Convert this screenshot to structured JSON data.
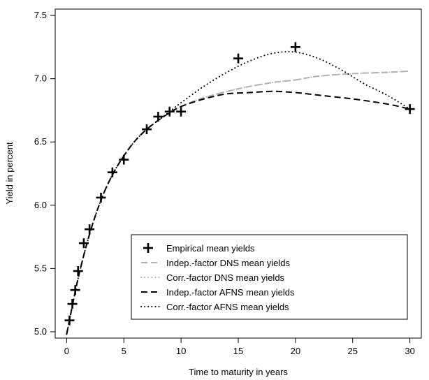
{
  "chart_data": {
    "type": "line",
    "title": "",
    "xlabel": "Time to maturity in years",
    "ylabel": "Yield in percent",
    "xlim": [
      -1,
      31
    ],
    "ylim": [
      4.95,
      7.55
    ],
    "xticks": [
      0,
      5,
      10,
      15,
      20,
      25,
      30
    ],
    "yticks": [
      5.0,
      5.5,
      6.0,
      6.5,
      7.0,
      7.5
    ],
    "xtick_labels": [
      "0",
      "5",
      "10",
      "15",
      "20",
      "25",
      "30"
    ],
    "ytick_labels": [
      "5.0",
      "5.5",
      "6.0",
      "6.5",
      "7.0",
      "7.5"
    ],
    "grid": false,
    "legend_position": "bottom-right",
    "empirical": {
      "name": "Empirical mean yields",
      "x": [
        0.25,
        0.5,
        0.75,
        1,
        1.5,
        2,
        3,
        4,
        5,
        7,
        8,
        9,
        10,
        15,
        20,
        30
      ],
      "y": [
        5.09,
        5.22,
        5.33,
        5.48,
        5.7,
        5.81,
        6.06,
        6.26,
        6.36,
        6.6,
        6.7,
        6.74,
        6.74,
        7.16,
        7.25,
        6.76
      ]
    },
    "series": [
      {
        "name": "Indep.-factor DNS mean yields",
        "style": "dashed",
        "color": "#b0b0b0",
        "x": [
          0,
          1,
          2,
          3,
          4,
          5,
          6,
          7,
          8,
          9,
          10,
          12,
          15,
          18,
          20,
          22,
          25,
          28,
          30
        ],
        "y": [
          4.98,
          5.42,
          5.77,
          6.04,
          6.24,
          6.39,
          6.51,
          6.6,
          6.67,
          6.73,
          6.78,
          6.85,
          6.92,
          6.97,
          6.99,
          7.02,
          7.04,
          7.05,
          7.06
        ]
      },
      {
        "name": "Corr.-factor DNS mean yields",
        "style": "dotted",
        "color": "#b0b0b0",
        "x": [
          0,
          1,
          2,
          3,
          4,
          5,
          6,
          7,
          8,
          9,
          10,
          12,
          15,
          18,
          20,
          22,
          25,
          28,
          30
        ],
        "y": [
          4.98,
          5.42,
          5.77,
          6.04,
          6.24,
          6.39,
          6.51,
          6.6,
          6.67,
          6.73,
          6.78,
          6.85,
          6.92,
          6.97,
          6.99,
          7.02,
          7.04,
          7.05,
          7.06
        ]
      },
      {
        "name": "Indep.-factor AFNS mean yields",
        "style": "dashed",
        "color": "#000000",
        "x": [
          0,
          1,
          2,
          3,
          4,
          5,
          6,
          7,
          8,
          9,
          10,
          12,
          14,
          16,
          18,
          20,
          22,
          25,
          28,
          30
        ],
        "y": [
          4.98,
          5.42,
          5.77,
          6.04,
          6.24,
          6.39,
          6.51,
          6.6,
          6.67,
          6.73,
          6.78,
          6.84,
          6.88,
          6.89,
          6.9,
          6.89,
          6.87,
          6.84,
          6.8,
          6.76
        ]
      },
      {
        "name": "Corr.-factor AFNS mean yields",
        "style": "dotted",
        "color": "#000000",
        "x": [
          0,
          1,
          2,
          3,
          4,
          5,
          6,
          7,
          8,
          9,
          10,
          12,
          14,
          16,
          18,
          20,
          22,
          24,
          26,
          28,
          30
        ],
        "y": [
          4.98,
          5.42,
          5.77,
          6.04,
          6.24,
          6.39,
          6.51,
          6.6,
          6.67,
          6.74,
          6.81,
          6.94,
          7.05,
          7.14,
          7.2,
          7.21,
          7.16,
          7.07,
          6.96,
          6.87,
          6.76
        ]
      }
    ]
  }
}
